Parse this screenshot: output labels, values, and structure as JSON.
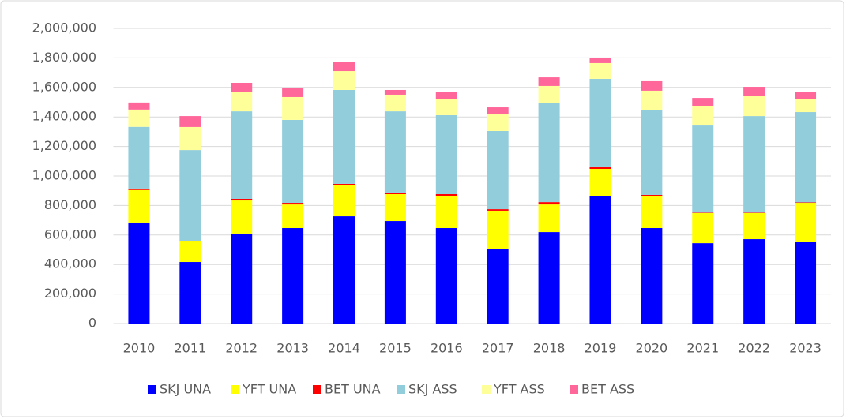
{
  "chart_data": {
    "type": "stacked_bar",
    "categories": [
      "2010",
      "2011",
      "2012",
      "2013",
      "2014",
      "2015",
      "2016",
      "2017",
      "2018",
      "2019",
      "2020",
      "2021",
      "2022",
      "2023"
    ],
    "series": [
      {
        "name": "SKJ UNA",
        "color": "#0000ff",
        "values": [
          685000,
          417000,
          610000,
          647000,
          727000,
          695000,
          647000,
          508000,
          620000,
          861000,
          647000,
          545000,
          572000,
          551000
        ]
      },
      {
        "name": "YFT UNA",
        "color": "#ffff00",
        "values": [
          220000,
          139000,
          224000,
          160000,
          209000,
          182000,
          219000,
          257000,
          187000,
          187000,
          214000,
          204000,
          177000,
          267000
        ]
      },
      {
        "name": "BET UNA",
        "color": "#ff0000",
        "values": [
          10000,
          3000,
          11000,
          11000,
          11000,
          11000,
          11000,
          10000,
          16000,
          11000,
          11000,
          3000,
          3000,
          3000
        ]
      },
      {
        "name": "SKJ ASS",
        "color": "#92cddc",
        "values": [
          418000,
          617000,
          593000,
          562000,
          636000,
          550000,
          535000,
          530000,
          674000,
          599000,
          577000,
          590000,
          654000,
          612000
        ]
      },
      {
        "name": "YFT ASS",
        "color": "#ffff99",
        "values": [
          117000,
          156000,
          129000,
          155000,
          128000,
          113000,
          112000,
          112000,
          113000,
          107000,
          129000,
          134000,
          134000,
          86000
        ]
      },
      {
        "name": "BET ASS",
        "color": "#ff6699",
        "values": [
          48000,
          74000,
          64000,
          64000,
          59000,
          32000,
          48000,
          48000,
          58000,
          37000,
          64000,
          53000,
          64000,
          48000
        ]
      }
    ],
    "ylim": [
      0,
      2000000
    ],
    "yticks": [
      0,
      {
        "value": 200000,
        "label": "200,000"
      },
      {
        "value": 400000,
        "label": "400,000"
      },
      {
        "value": 600000,
        "label": "600,000"
      },
      {
        "value": 800000,
        "label": "800,000"
      },
      {
        "value": 1000000,
        "label": "1,000,000"
      },
      {
        "value": 1200000,
        "label": "1,200,000"
      },
      {
        "value": 1400000,
        "label": "1,400,000"
      },
      {
        "value": 1600000,
        "label": "1,600,000"
      },
      {
        "value": 1800000,
        "label": "1,800,000"
      },
      {
        "value": 2000000,
        "label": "2,000,000"
      }
    ],
    "grid": true,
    "legend": "bottom"
  }
}
